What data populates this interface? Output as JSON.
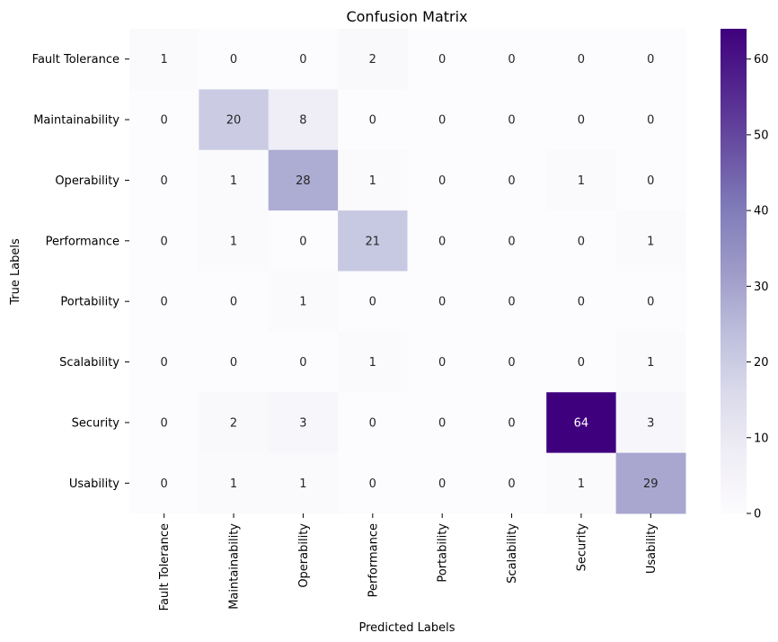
{
  "chart_data": {
    "type": "heatmap",
    "title": "Confusion Matrix",
    "xlabel": "Predicted Labels",
    "ylabel": "True Labels",
    "x_categories": [
      "Fault Tolerance",
      "Maintainability",
      "Operability",
      "Performance",
      "Portability",
      "Scalability",
      "Security",
      "Usability"
    ],
    "y_categories": [
      "Fault Tolerance",
      "Maintainability",
      "Operability",
      "Performance",
      "Portability",
      "Scalability",
      "Security",
      "Usability"
    ],
    "values": [
      [
        1,
        0,
        0,
        2,
        0,
        0,
        0,
        0
      ],
      [
        0,
        20,
        8,
        0,
        0,
        0,
        0,
        0
      ],
      [
        0,
        1,
        28,
        1,
        0,
        0,
        1,
        0
      ],
      [
        0,
        1,
        0,
        21,
        0,
        0,
        0,
        1
      ],
      [
        0,
        0,
        1,
        0,
        0,
        0,
        0,
        0
      ],
      [
        0,
        0,
        0,
        1,
        0,
        0,
        0,
        1
      ],
      [
        0,
        2,
        3,
        0,
        0,
        0,
        64,
        3
      ],
      [
        0,
        1,
        1,
        0,
        0,
        0,
        1,
        29
      ]
    ],
    "colorbar": {
      "min": 0,
      "max": 64,
      "ticks": [
        0,
        10,
        20,
        30,
        40,
        50,
        60
      ]
    },
    "colormap": "Purples",
    "colors": {
      "low": "#fcfbfd",
      "high": "#3f007d"
    }
  }
}
